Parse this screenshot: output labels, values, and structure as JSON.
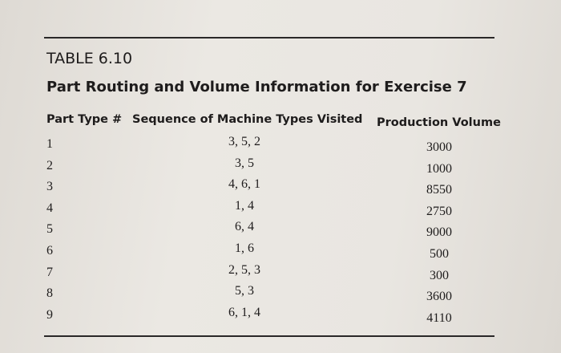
{
  "table": {
    "label": "TABLE 6.10",
    "title": "Part Routing and Volume Information for Exercise 7",
    "columns": [
      "Part Type #",
      "Sequence of Machine Types Visited",
      "Production Volume"
    ],
    "rows": [
      [
        "1",
        "3, 5, 2",
        "3000"
      ],
      [
        "2",
        "3, 5",
        "1000"
      ],
      [
        "3",
        "4, 6, 1",
        "8550"
      ],
      [
        "4",
        "1, 4",
        "2750"
      ],
      [
        "5",
        "6, 4",
        "9000"
      ],
      [
        "6",
        "1, 6",
        "500"
      ],
      [
        "7",
        "2, 5, 3",
        "300"
      ],
      [
        "8",
        "5, 3",
        "3600"
      ],
      [
        "9",
        "6, 1, 4",
        "4110"
      ]
    ]
  }
}
